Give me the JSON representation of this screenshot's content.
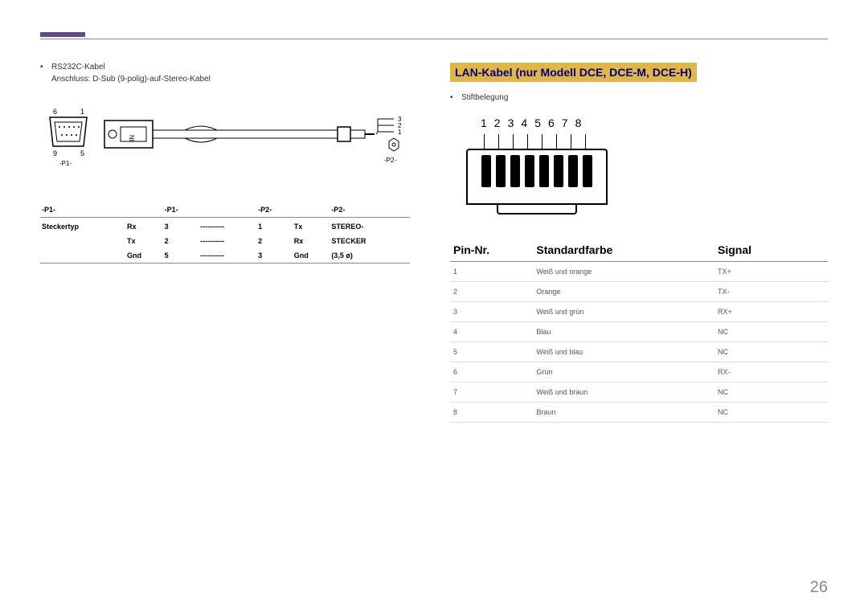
{
  "page_number": "26",
  "left": {
    "bullet": "RS232C-Kabel",
    "sub_bullet": "Anschluss: D-Sub (9-polig)-auf-Stereo-Kabel",
    "diagram": {
      "p1_label": "-P1-",
      "p2_label": "-P2-",
      "dsub_top_left": "6",
      "dsub_top_right": "1",
      "dsub_bot_left": "9",
      "dsub_bot_right": "5",
      "in_label": "IN",
      "wire1": "3",
      "wire2": "2",
      "wire3": "1"
    },
    "table": {
      "headers": [
        "-P1-",
        "-P1-",
        "",
        "-P2-",
        "-P2-",
        ""
      ],
      "row_labels": [
        "Steckertyp"
      ],
      "rows": [
        [
          "Steckertyp",
          "Rx",
          "3",
          "----------",
          "1",
          "Tx",
          "STEREO-"
        ],
        [
          "",
          "Tx",
          "2",
          "----------",
          "2",
          "Rx",
          "STECKER"
        ],
        [
          "",
          "Gnd",
          "5",
          "----------",
          "3",
          "Gnd",
          "(3,5 ø)"
        ]
      ]
    }
  },
  "right": {
    "title": "LAN-Kabel (nur Modell DCE, DCE-M, DCE-H)",
    "bullet": "Stiftbelegung",
    "rj45_numbers": [
      "1",
      "2",
      "3",
      "4",
      "5",
      "6",
      "7",
      "8"
    ],
    "lan_table": {
      "headers": [
        "Pin-Nr.",
        "Standardfarbe",
        "Signal"
      ],
      "rows": [
        [
          "1",
          "Weiß und orange",
          "TX+"
        ],
        [
          "2",
          "Orange",
          "TX-"
        ],
        [
          "3",
          "Weiß und grün",
          "RX+"
        ],
        [
          "4",
          "Blau",
          "NC"
        ],
        [
          "5",
          "Weiß und blau",
          "NC"
        ],
        [
          "6",
          "Grün",
          "RX-"
        ],
        [
          "7",
          "Weiß und braun",
          "NC"
        ],
        [
          "8",
          "Braun",
          "NC"
        ]
      ]
    }
  }
}
